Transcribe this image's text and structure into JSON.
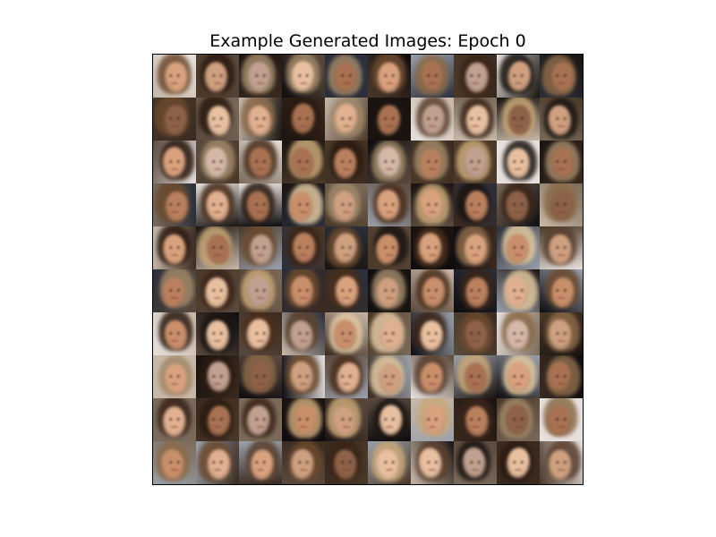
{
  "figure": {
    "title": "Example Generated Images: Epoch 0"
  },
  "grid": {
    "rows": 10,
    "cols": 10,
    "tile_name": "generated-face-image",
    "palette": {
      "backgrounds": [
        "#1a1410",
        "#3a2a20",
        "#5a4a3e",
        "#2b2f3a",
        "#c8b8a8",
        "#e6e0dc",
        "#0e0c10",
        "#4a3828",
        "#7a6a5a",
        "#9aa0aa"
      ],
      "skins": [
        "#d9a27e",
        "#c98f6b",
        "#e0b090",
        "#b9805e",
        "#a87252",
        "#e8c0a0",
        "#cfa080",
        "#8e6248",
        "#d4b8a8",
        "#c0a090"
      ],
      "hairs": [
        "#2a1a10",
        "#4a2e1c",
        "#6b4a2e",
        "#1a1410",
        "#8a6a48",
        "#c9a878",
        "#e0c8a0",
        "#3a2418",
        "#5a4030",
        "#a08868"
      ]
    }
  }
}
